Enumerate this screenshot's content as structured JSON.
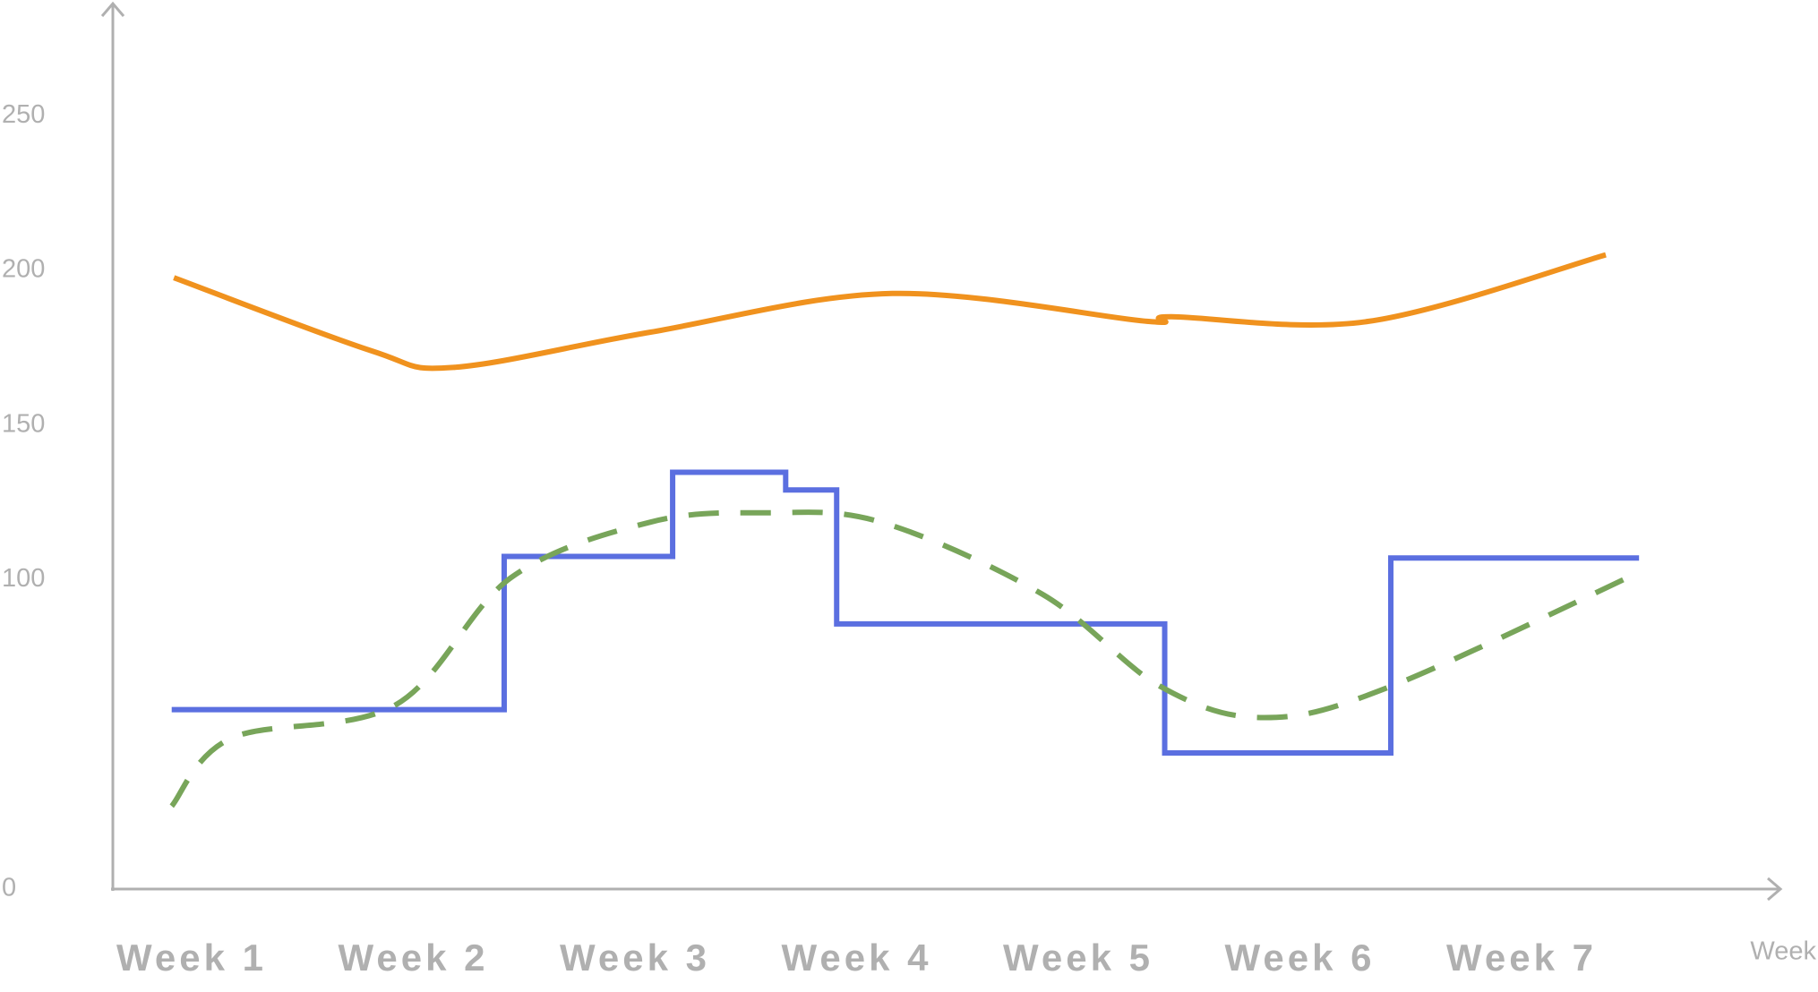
{
  "chart_data": {
    "type": "line",
    "x_label": "Week",
    "xlim": [
      0.6,
      7.8
    ],
    "xticks": [
      {
        "value": 1,
        "label": "Week 1"
      },
      {
        "value": 2,
        "label": "Week 2"
      },
      {
        "value": 3,
        "label": "Week 3"
      },
      {
        "value": 4,
        "label": "Week 4"
      },
      {
        "value": 5,
        "label": "Week 5"
      },
      {
        "value": 6,
        "label": "Week 6"
      },
      {
        "value": 7,
        "label": "Week 7"
      }
    ],
    "ylim": [
      0,
      270
    ],
    "yticks": [
      0,
      100,
      150,
      200,
      250
    ],
    "grid": false,
    "series": [
      {
        "color": "#f0921e",
        "style": "smooth",
        "x": [
          0.92,
          1.81,
          2.18,
          3.07,
          4.16,
          5.31,
          5.42,
          6.31,
          7.38
        ],
        "values": [
          197.6,
          174,
          168.6,
          180,
          192.5,
          183.5,
          185,
          183.5,
          205
        ]
      },
      {
        "color": "#5b6fe0",
        "style": "step",
        "x": [
          0.91,
          2.41,
          3.17,
          3.68,
          3.91,
          5.39,
          6.41,
          7.53
        ],
        "values": [
          58,
          107.5,
          134.7,
          129,
          85.7,
          44,
          107,
          107
        ]
      },
      {
        "color": "#78a55a",
        "style": "dashed",
        "x": [
          0.91,
          1.18,
          1.92,
          2.44,
          3.07,
          3.59,
          4.11,
          4.84,
          5.37,
          5.84,
          6.41,
          7.54
        ],
        "values": [
          26.8,
          48.8,
          59.5,
          100.6,
          118.6,
          121.6,
          118.6,
          95.2,
          65.5,
          55.4,
          65.5,
          102.7
        ]
      }
    ]
  }
}
